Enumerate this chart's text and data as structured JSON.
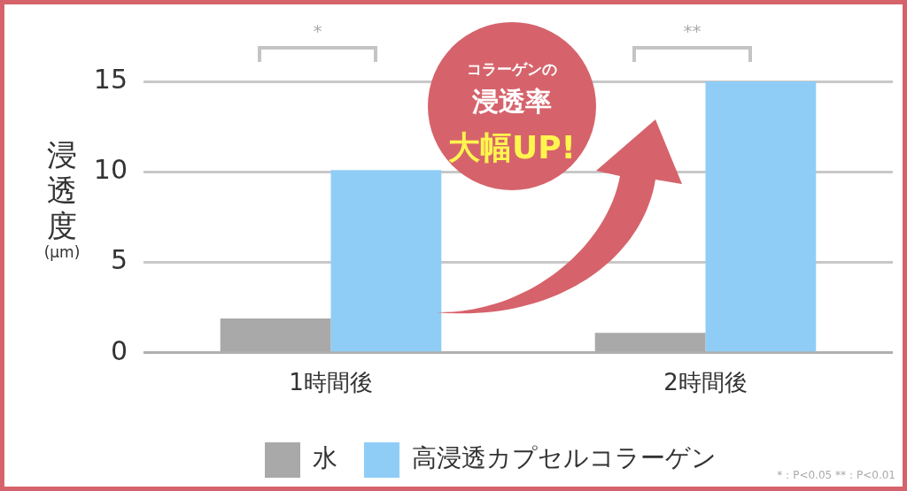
{
  "chart_data": {
    "type": "bar",
    "categories": [
      "1時間後",
      "2時間後"
    ],
    "series": [
      {
        "name": "水",
        "color": "#a9a9a9",
        "values": [
          1.9,
          1.1
        ]
      },
      {
        "name": "高浸透カプセルコラーゲン",
        "color": "#8fcdf7",
        "values": [
          10.1,
          15
        ]
      }
    ],
    "ylabel": "浸透度(μm)",
    "ylim": [
      0,
      15
    ],
    "yticks": [
      0,
      5,
      10,
      15
    ],
    "grid": "y",
    "legend": "bottom",
    "annotations": [
      "*",
      "**",
      "コラーゲンの",
      "浸透率",
      "大幅UP!",
      "*：P<0.05 **：P<0.01"
    ]
  }
}
